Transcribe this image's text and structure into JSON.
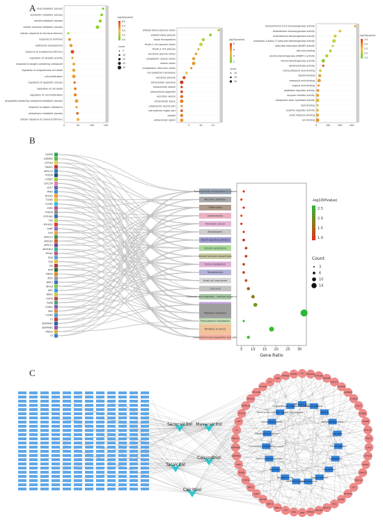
{
  "panels": {
    "a": "A",
    "b": "B",
    "c": "C"
  },
  "panel_a": [
    {
      "id": "bp",
      "terms": [
        "drug metabolic process",
        "xenobiotic metabolic process",
        "steroid metabolic process",
        "cellular hormone metabolic process",
        "cellular response to hormone stimulus",
        "response to hormone",
        "epithelium development",
        "response to endogenous stimulus",
        "regulation of catalytic activity",
        "response to oxygen-containing compound",
        "regulation of programmed cell death",
        "cell proliferation",
        "regulation of apoptotic process",
        "regulation of cell death",
        "regulation of cell proliferation",
        "phosphate-containing compound metabolic process",
        "response to organic substance",
        "phosphorus metabolic process",
        "cellular response to chemical stimulus"
      ],
      "values": [
        140,
        135,
        130,
        120,
        15,
        20,
        25,
        30,
        30,
        35,
        35,
        35,
        38,
        40,
        40,
        45,
        45,
        48,
        50
      ],
      "colors": [
        "#7dd31a",
        "#7dd31a",
        "#8fd41c",
        "#8fd41c",
        "#9cd82a",
        "#e28a1a",
        "#e9962a",
        "#d84a1a",
        "#ecac30",
        "#e6a22a",
        "#e6a22a",
        "#eaa32e",
        "#d96a1e",
        "#e37e22",
        "#e68a28",
        "#eba036",
        "#ef9d2a",
        "#e06c1f",
        "#f0b43a"
      ],
      "ticks": [
        "0",
        "50",
        "100",
        "150"
      ],
      "legend_title": "-log10(pvalue)",
      "legend_ticks": [
        "6.0",
        "5.5",
        "5.0",
        "4.5",
        "4.0"
      ],
      "count_title": "count",
      "count_ticks": [
        "5",
        "10",
        "15",
        "20",
        "25"
      ]
    },
    {
      "id": "cc",
      "terms": [
        "platelet dense granule lumen",
        "platelet alpha granule",
        "blood microparticle",
        "ficolin-1-rich granule lumen",
        "ficolin-1-rich granule",
        "secretory granule lumen",
        "cytoplasmic vesicle lumen",
        "vesicle lumen",
        "endoplasmic reticulum lumen",
        "cell projection membrane",
        "secretory granule",
        "extracellular exosome",
        "extracellular vesicle",
        "extracellular organelle",
        "secretory vesicle",
        "extracellular space",
        "cytoplasmic vesicle part",
        "extracellular region part",
        "cytosol",
        "extracellular region"
      ],
      "values": [
        18,
        14,
        11,
        10,
        9,
        8,
        7,
        7,
        6,
        4,
        3,
        2,
        2,
        2,
        2,
        2,
        2,
        2,
        2,
        2
      ],
      "colors": [
        "#93d42a",
        "#8ccf2a",
        "#9fd235",
        "#c3d440",
        "#d2c245",
        "#e3a738",
        "#e59e33",
        "#e7952f",
        "#ea8c2a",
        "#eec63e",
        "#d94c1c",
        "#c8321a",
        "#cc3a1b",
        "#d0401c",
        "#dc6a22",
        "#e48026",
        "#e7902c",
        "#dc5a1f",
        "#e27d26",
        "#e99b30"
      ],
      "ticks": [
        "5",
        "10",
        "15"
      ],
      "legend_title": "-log10(pvalue)",
      "legend_ticks": [
        "8",
        "6",
        "4",
        "2"
      ],
      "count_title": "count",
      "count_ticks": [
        "10",
        "20",
        "30"
      ]
    },
    {
      "id": "mf",
      "terms": [
        "phenanthrene 9,10-monooxygenase activity",
        "testosterone monooxygenase activity",
        "androsterone dehydrogenase activity",
        "androstan-3-alpha,17-beta-diol dehydrogenase activity",
        "aldo-keto reductase (NADP) activity",
        "bile acid binding",
        "alcohol dehydrogenase (NADP+) activity",
        "retinol dehydrogenase activity",
        "oxidoreductase activity",
        "monocarboxylic acid binding",
        "steroid binding",
        "carboxylic acid binding",
        "organic acid binding",
        "peptidase regulator activity",
        "enzyme inhibitor activity",
        "phosphoric ester hydrolase activity",
        "lipid binding",
        "enzyme regulator activity",
        "small molecule binding",
        "ion binding"
      ],
      "values": [
        330,
        200,
        160,
        150,
        140,
        120,
        90,
        60,
        60,
        35,
        30,
        25,
        20,
        15,
        12,
        10,
        8,
        6,
        5,
        5
      ],
      "colors": [
        "#f3a928",
        "#f0b840",
        "#d7cc45",
        "#b9d23e",
        "#c2d040",
        "#9bd233",
        "#a8cf34",
        "#86cc2c",
        "#e14c1c",
        "#cfcb46",
        "#d9a838",
        "#e3a23a",
        "#e69b30",
        "#ea8f2a",
        "#e8a532",
        "#e3b83e",
        "#d6c243",
        "#dcb63e",
        "#e4a838",
        "#e8962d"
      ],
      "ticks": [
        "0",
        "100",
        "200",
        "300"
      ],
      "legend_title": "-log10(pvalue)",
      "legend_ticks": [
        "3.5",
        "3.0",
        "2.5",
        "2.0",
        "1.5"
      ],
      "count_title": "",
      "count_ticks": []
    }
  ],
  "panel_b": {
    "genes": [
      "DUSP6",
      "GABRA2",
      "CYP3A4",
      "GNAO1",
      "AKR1C3",
      "PDE3A",
      "CCND1",
      "CDC25A",
      "CDC7",
      "PRKX",
      "ROCK2",
      "TGFB2",
      "CCNB1",
      "ESR2",
      "PDE1B",
      "CYP19A1",
      "CA2",
      "MTHFD1",
      "GART",
      "DCK",
      "AKR1C2",
      "AKR1B1",
      "AKR1C1",
      "AKR1B10",
      "EPHA2",
      "DGK",
      "CDA",
      "GPI",
      "RNR",
      "MMD4",
      "ADIC",
      "BIRC3",
      "IDH1B",
      "JAK1",
      "BIRC2",
      "STAT6",
      "RARB",
      "CCND1",
      "SMO",
      "TGFB2",
      "F2",
      "SERPINA1",
      "SERPINB1",
      "PRKCA",
      "C5"
    ],
    "gene_colors": [
      "#2aa55a",
      "#5ab84c",
      "#d9cd4a",
      "#c33a38",
      "#2f7bb4",
      "#1b4f86",
      "#9bcf3a",
      "#e27bb0",
      "#6d5ba8",
      "#3c8fd3",
      "#f09b2e",
      "#e0c63c",
      "#2dbce6",
      "#c14d8f",
      "#8a8a8a",
      "#3e6ab1",
      "#b8d34a",
      "#dd3b3b",
      "#8f6cbd",
      "#e6a33f",
      "#4a8a4f",
      "#cc5f2d",
      "#7e3f9b",
      "#2db3a0",
      "#b45c7d",
      "#5aa0d8",
      "#e7c03c",
      "#a63b3b",
      "#2a6a3b",
      "#d48e2b",
      "#9b9b9b",
      "#3a74b8",
      "#7cc94a",
      "#3c9ad6",
      "#c9c93a",
      "#b14a52",
      "#4fa07f",
      "#8a5aa8",
      "#d9874a",
      "#4f9ad1",
      "#c23b3b",
      "#2f5fa7",
      "#8c4fb0",
      "#d1b038",
      "#3f7fbf"
    ],
    "pathways": [
      "Transcriptional misregulation in cancer",
      "Morphine addiction",
      "Tuberculosis",
      "Leishmaniasis",
      "Pancreatic cancer",
      "Neurotrophin",
      "Apelin signaling pathway",
      "Cellular senescence",
      "Steroid hormone biosynthesis",
      "Purine metabolism",
      "Toxoplasmosis",
      "Small cell lung cancer",
      "Cell cycle",
      "Chemical carcinogenesis - reactive oxygen species",
      "Ca2 signaling pathway",
      "Metabolic pathways",
      "Phenylalanine metabolism",
      "Pathways in cancer",
      "Complement and coagulation cascades"
    ],
    "pathway_colors": [
      "#9aa3b3",
      "#aaaaaa",
      "#ad9a8a",
      "#e8b0c0",
      "#e7b7d8",
      "#cdcdcd",
      "#9b9bd0",
      "#a9d89b",
      "#c9c9a0",
      "#e0b0d8",
      "#b3b3d8",
      "#d8d8d8",
      "#c3c3c3",
      "#a8c8a8",
      "#c0a0d8",
      "#9e9e9e",
      "#c8e0b8",
      "#f0c39a",
      "#f4b0a0"
    ],
    "gene_ratio": [
      6,
      5,
      6,
      5,
      5,
      6,
      6,
      7,
      7,
      6,
      6,
      7,
      8,
      10,
      11,
      32,
      6,
      18,
      8
    ],
    "pvalue_colors": [
      "#e0301a",
      "#e33a1a",
      "#dd2a1a",
      "#e8441a",
      "#d6281a",
      "#d8301a",
      "#c8301a",
      "#b84a1a",
      "#b8451a",
      "#c8401a",
      "#c0441a",
      "#b8501a",
      "#9a5a18",
      "#8a7a1a",
      "#6a9a1a",
      "#2bb837",
      "#2ab835",
      "#30c030",
      "#3ac238"
    ],
    "point_sizes": [
      3,
      3,
      3,
      3,
      3,
      3,
      4,
      4,
      4,
      4,
      4,
      4,
      5,
      6,
      7,
      14,
      3,
      9,
      5
    ],
    "xticks": [
      "5",
      "10",
      "15",
      "20",
      "25",
      "30"
    ],
    "xlabel": "Gene.Ratio",
    "legend_title": "-log10(Pvalue)",
    "legend_ticks": [
      "2.5",
      "2.0",
      "1.5",
      "1.0"
    ],
    "count_title": "Count",
    "count_ticks": [
      "3",
      "6",
      "10",
      "14"
    ]
  },
  "panel_c": {
    "compounds": [
      "Secocalcitol",
      "Maxacalcitol",
      "Tacalcitol",
      "Calcipotriol",
      "Calcitriol"
    ],
    "compound_color": "#2ec8d0",
    "target_color": "#f08a8a",
    "pathway_color": "#2f7fd6",
    "left_node_color": "#5fa8e8",
    "target_labels": [
      "F2",
      "CDC25A",
      "CYP19A1",
      "PDE1B",
      "AKR1C3",
      "DUSP6",
      "GABRA2",
      "CCND1",
      "CDC7",
      "CCNB1",
      "TGFB2",
      "ROCK2",
      "PRKX",
      "CDK2",
      "CYP3A4",
      "ESR2",
      "GNAO1",
      "PDE3A",
      "CA2",
      "MTHFD1",
      "GART",
      "DCK",
      "AKR1C2",
      "AKR1B1",
      "EPHA2",
      "DGK",
      "CDA",
      "GPI",
      "MMD4",
      "BIRC3",
      "IDH1B",
      "JAK1",
      "BIRC2",
      "STAT6",
      "RARB",
      "SMO",
      "SERPINA1",
      "SERPINB1",
      "PRKCA",
      "C5",
      "ADK",
      "PTGS2",
      "MAPK14",
      "HPGDS",
      "CYP11B1",
      "ELANE",
      "KIT",
      "RNR",
      "PPARG",
      "FGFR1"
    ],
    "pathway_labels": [
      "Pathways in cancer",
      "Metabolic pathways",
      "Cell cycle",
      "Apelin signaling pathway",
      "Tuberculosis",
      "Purine metabolism",
      "Toxoplasmosis",
      "Leishmaniasis",
      "Morphine addiction",
      "Cellular senescence",
      "Small cell lung cancer",
      "Pancreatic cancer",
      "Neurotrophin",
      "Steroid hormone biosynthesis",
      "Transcriptional misregulation in cancer",
      "Phenylalanine metabolism",
      "Ca2 signaling pathway",
      "Chemical carcinogenesis - reactive oxygen species",
      "Complement and coagulation cascades"
    ]
  }
}
